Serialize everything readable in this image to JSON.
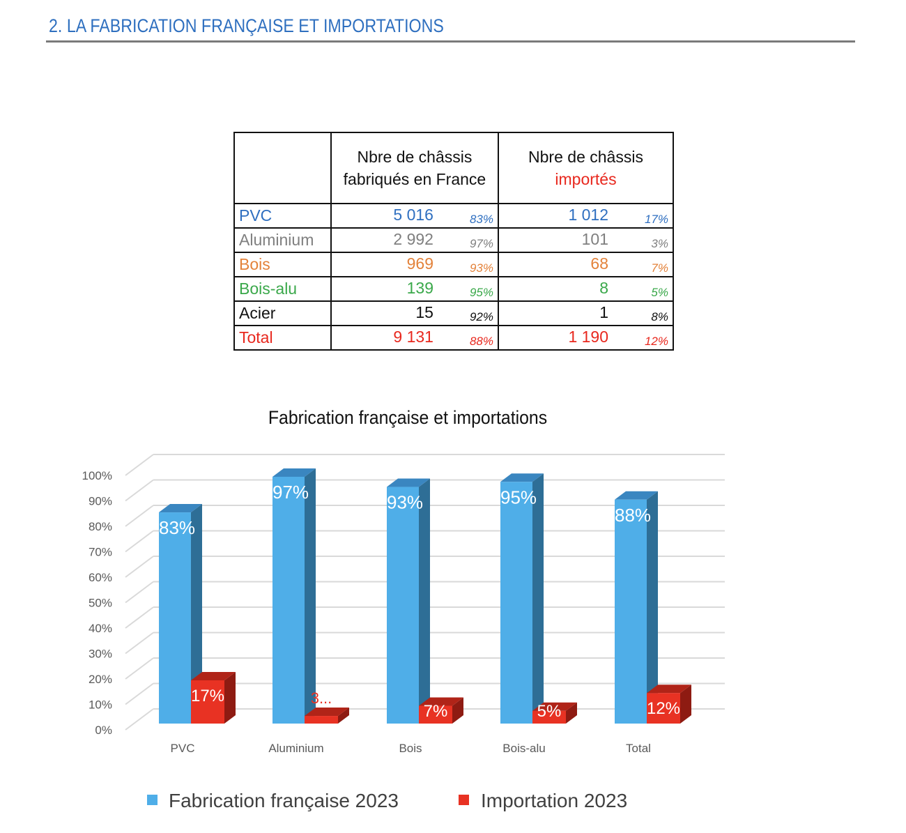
{
  "heading": "2.  LA FABRICATION FRANÇAISE ET IMPORTATIONS",
  "table": {
    "headers": {
      "france_line1": "Nbre de châssis",
      "france_line2": "fabriqués en France",
      "import_line1": "Nbre de châssis",
      "import_line2": "importés"
    },
    "rows": [
      {
        "label": "PVC",
        "france": "5 016",
        "france_pct": "83%",
        "import": "1 012",
        "import_pct": "17%",
        "color": "#2f6fc0"
      },
      {
        "label": "Aluminium",
        "france": "2 992",
        "france_pct": "97%",
        "import": "101",
        "import_pct": "3%",
        "color": "#7f7f7f"
      },
      {
        "label": "Bois",
        "france": "969",
        "france_pct": "93%",
        "import": "68",
        "import_pct": "7%",
        "color": "#e3823a"
      },
      {
        "label": "Bois-alu",
        "france": "139",
        "france_pct": "95%",
        "import": "8",
        "import_pct": "5%",
        "color": "#3aa84a"
      },
      {
        "label": "Acier",
        "france": "15",
        "france_pct": "92%",
        "import": "1",
        "import_pct": "8%",
        "color": "#111111"
      },
      {
        "label": "Total",
        "france": "9 131",
        "france_pct": "88%",
        "import": "1 190",
        "import_pct": "12%",
        "color": "#e8281e"
      }
    ]
  },
  "chart_data": {
    "type": "bar",
    "style": "3d-clustered-column",
    "title": "Fabrication française et importations",
    "categories": [
      "PVC",
      "Aluminium",
      "Bois",
      "Bois-alu",
      "Total"
    ],
    "ylim": [
      0,
      100
    ],
    "yticks": [
      "0%",
      "10%",
      "20%",
      "30%",
      "40%",
      "50%",
      "60%",
      "70%",
      "80%",
      "90%",
      "100%"
    ],
    "grid": true,
    "legend_position": "bottom",
    "series": [
      {
        "name": "Fabrication française 2023",
        "values": [
          83,
          97,
          93,
          95,
          88
        ],
        "labels": [
          "83%",
          "97%",
          "93%",
          "95%",
          "88%"
        ],
        "color": "#4faee8"
      },
      {
        "name": "Importation 2023",
        "values": [
          17,
          3,
          7,
          5,
          12
        ],
        "labels": [
          "17%",
          "3...",
          "7%",
          "5%",
          "12%"
        ],
        "color": "#e83223"
      }
    ]
  }
}
